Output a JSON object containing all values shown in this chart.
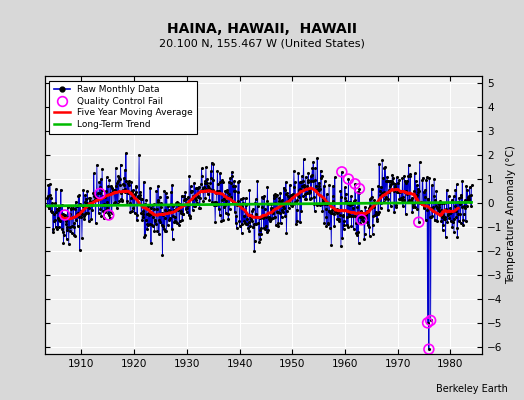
{
  "title": "HAINA, HAWAII,  HAWAII",
  "subtitle": "20.100 N, 155.467 W (United States)",
  "ylabel": "Temperature Anomaly (°C)",
  "watermark": "Berkeley Earth",
  "xlim": [
    1903,
    1986
  ],
  "ylim": [
    -6.3,
    5.3
  ],
  "yticks": [
    -6,
    -5,
    -4,
    -3,
    -2,
    -1,
    0,
    1,
    2,
    3,
    4,
    5
  ],
  "xticks": [
    1910,
    1920,
    1930,
    1940,
    1950,
    1960,
    1970,
    1980
  ],
  "bg_color": "#d8d8d8",
  "plot_bg_color": "#f0f0f0",
  "grid_color": "#ffffff",
  "raw_color": "#0000cc",
  "ma_color": "#ff0000",
  "trend_color": "#00bb00",
  "qc_color": "#ff00ff",
  "seed": 42,
  "n_points": 966,
  "start_year": 1903.5,
  "end_year": 1984.0,
  "qc_fail_indices": [
    40,
    120,
    140,
    670,
    685,
    700,
    710,
    715,
    845,
    865,
    868,
    872
  ],
  "qc_values": [
    -0.5,
    0.4,
    -0.5,
    1.3,
    1.0,
    0.8,
    0.6,
    -0.7,
    -0.8,
    -5.0,
    -6.1,
    -4.9
  ]
}
